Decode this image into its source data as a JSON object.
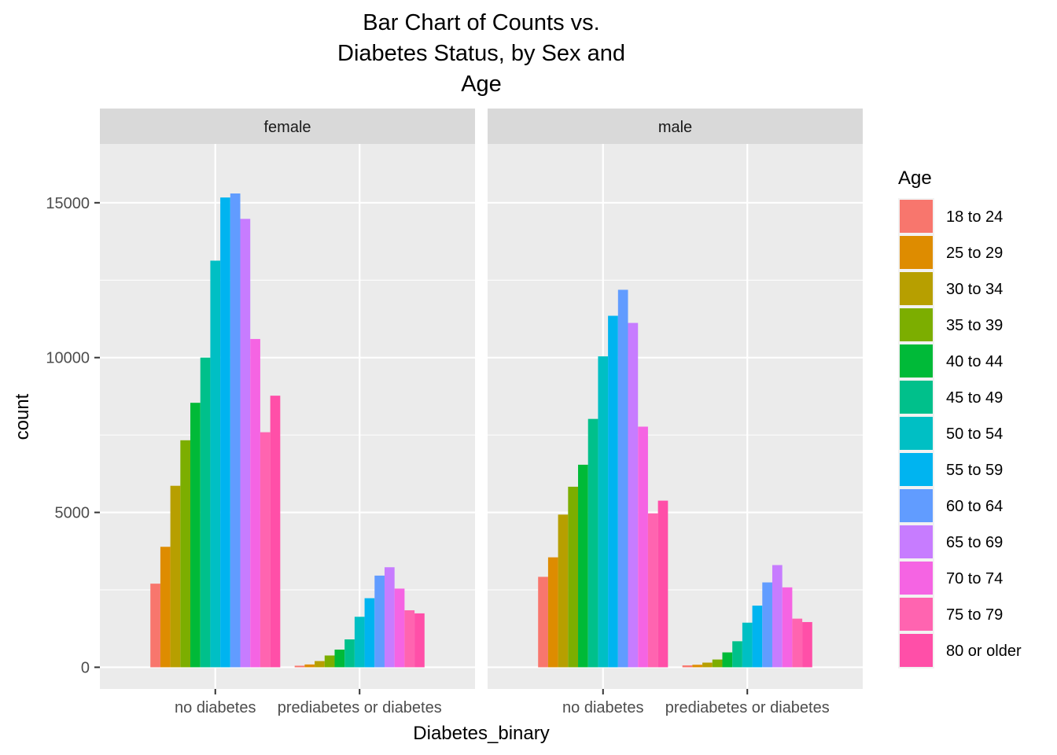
{
  "chart_data": {
    "type": "bar",
    "title_lines": [
      "Bar Chart of Counts vs.",
      "Diabetes Status, by Sex and",
      "Age"
    ],
    "xlabel": "Diabetes_binary",
    "ylabel": "count",
    "ylim": [
      -700,
      16900
    ],
    "yticks": [
      0,
      5000,
      10000,
      15000
    ],
    "grid": true,
    "legend_position": "right",
    "legend_title": "Age",
    "categories": [
      "no diabetes",
      "prediabetes or diabetes"
    ],
    "facets": [
      "female",
      "male"
    ],
    "series": [
      {
        "name": "18 to 24",
        "color": "#F8766D",
        "values": {
          "female": [
            2700,
            50
          ],
          "male": [
            2920,
            60
          ]
        }
      },
      {
        "name": "25 to 29",
        "color": "#DE8C00",
        "values": {
          "female": [
            3890,
            90
          ],
          "male": [
            3550,
            80
          ]
        }
      },
      {
        "name": "30 to 34",
        "color": "#B79F00",
        "values": {
          "female": [
            5860,
            200
          ],
          "male": [
            4930,
            150
          ]
        }
      },
      {
        "name": "35 to 39",
        "color": "#7CAE00",
        "values": {
          "female": [
            7330,
            380
          ],
          "male": [
            5830,
            250
          ]
        }
      },
      {
        "name": "40 to 44",
        "color": "#00BA38",
        "values": {
          "female": [
            8540,
            570
          ],
          "male": [
            6540,
            480
          ]
        }
      },
      {
        "name": "45 to 49",
        "color": "#00C08B",
        "values": {
          "female": [
            10000,
            900
          ],
          "male": [
            8020,
            840
          ]
        }
      },
      {
        "name": "50 to 54",
        "color": "#00BFC4",
        "values": {
          "female": [
            13130,
            1630
          ],
          "male": [
            10040,
            1440
          ]
        }
      },
      {
        "name": "55 to 59",
        "color": "#00B4F0",
        "values": {
          "female": [
            15170,
            2230
          ],
          "male": [
            11350,
            1990
          ]
        }
      },
      {
        "name": "60 to 64",
        "color": "#619CFF",
        "values": {
          "female": [
            15300,
            2960
          ],
          "male": [
            12190,
            2740
          ]
        }
      },
      {
        "name": "65 to 69",
        "color": "#C77CFF",
        "values": {
          "female": [
            14480,
            3230
          ],
          "male": [
            11120,
            3300
          ]
        }
      },
      {
        "name": "70 to 74",
        "color": "#F564E3",
        "values": {
          "female": [
            10600,
            2540
          ],
          "male": [
            7770,
            2580
          ]
        }
      },
      {
        "name": "75 to 79",
        "color": "#FF64B0",
        "values": {
          "female": [
            7590,
            1840
          ],
          "male": [
            4970,
            1570
          ]
        }
      },
      {
        "name": "80 or older",
        "color": "#FF4FA8",
        "values": {
          "female": [
            8770,
            1740
          ],
          "male": [
            5380,
            1460
          ]
        }
      }
    ]
  },
  "colors": {
    "panel_background": "#EBEBEB",
    "strip_background": "#D9D9D9",
    "grid_major": "#FFFFFF",
    "text": "#000000",
    "axis_text": "#4D4D4D"
  }
}
